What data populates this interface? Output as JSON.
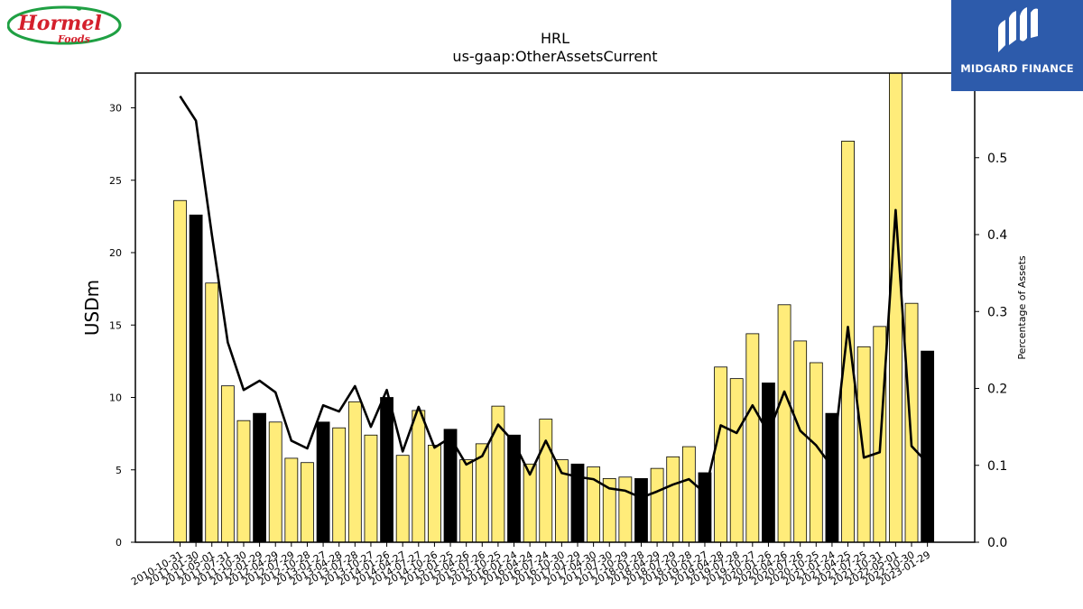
{
  "logos": {
    "left_brand": "Hormel",
    "left_sub": "Foods",
    "right_brand": "MIDGARD FINANCE"
  },
  "colors": {
    "bar_default": "#ffec7a",
    "bar_highlight": "#000000",
    "line": "#000000",
    "hormel_red": "#d4202c",
    "hormel_green": "#1fa043",
    "midgard_blue": "#2d5bab"
  },
  "chart_data": {
    "type": "bar",
    "title": "HRL",
    "subtitle": "us-gaap:OtherAssetsCurrent",
    "ylabel": "USDm",
    "y2label": "Percentage of Assets",
    "ylim": [
      0,
      32.4
    ],
    "y2lim": [
      0,
      0.61
    ],
    "yticks": [
      0,
      5,
      10,
      15,
      20,
      25,
      30
    ],
    "y2ticks": [
      0.0,
      0.1,
      0.2,
      0.3,
      0.4,
      0.5
    ],
    "categories": [
      "2010-10-31",
      "2011-01-30",
      "2011-05-01",
      "2011-07-31",
      "2011-10-30",
      "2012-01-29",
      "2012-04-29",
      "2012-07-29",
      "2012-10-28",
      "2013-01-27",
      "2013-04-28",
      "2013-07-28",
      "2013-10-27",
      "2014-01-26",
      "2014-04-27",
      "2014-07-27",
      "2014-10-26",
      "2015-01-25",
      "2015-04-26",
      "2015-07-26",
      "2015-10-25",
      "2016-01-24",
      "2016-04-24",
      "2016-07-24",
      "2016-10-30",
      "2017-01-29",
      "2017-04-30",
      "2017-07-30",
      "2017-10-29",
      "2018-01-28",
      "2018-04-29",
      "2018-07-29",
      "2018-10-28",
      "2019-01-27",
      "2019-04-28",
      "2019-07-28",
      "2019-10-27",
      "2020-01-26",
      "2020-04-26",
      "2020-07-26",
      "2020-10-25",
      "2021-01-24",
      "2021-04-25",
      "2021-07-25",
      "2021-10-31",
      "2022-05-01",
      "2022-10-30",
      "2023-01-29"
    ],
    "xtick_labels": [
      "2010-10-31",
      "2011-01-30",
      "2011-05-01",
      "2011-07-31",
      "2011-10-30",
      "2012-01-29",
      "2012-04-29",
      "2012-07-29",
      "2012-10-28",
      "2013-01-27",
      "2013-04-28",
      "2013-07-28",
      "2013-10-27",
      "2014-01-26",
      "2014-04-27",
      "2014-07-27",
      "2014-10-26",
      "2015-01-25",
      "2015-04-26",
      "2015-07-26",
      "2015-10-25",
      "2016-01-24",
      "2016-04-24",
      "2016-07-24",
      "2016-10-30",
      "2017-01-29",
      "2017-04-30",
      "2017-07-30",
      "2017-10-29",
      "2018-01-28",
      "2018-04-29",
      "2018-07-29",
      "2018-10-28",
      "2019-01-27",
      "2019-04-28",
      "2019-07-28",
      "2019-10-27",
      "2020-01-26",
      "2020-04-26",
      "2020-07-26",
      "2020-10-25",
      "2021-01-24",
      "2021-04-25",
      "2021-07-25",
      "2021-10-31",
      "2022-05-01",
      "2022-10-30",
      "2023-01-29"
    ],
    "series": [
      {
        "kind": "bar",
        "values": [
          23.6,
          22.6,
          17.9,
          10.8,
          8.4,
          8.9,
          8.3,
          5.8,
          5.5,
          8.3,
          7.9,
          9.7,
          7.4,
          10.0,
          6.0,
          9.1,
          6.7,
          7.8,
          5.7,
          6.8,
          9.4,
          7.4,
          5.4,
          8.5,
          5.7,
          5.4,
          5.2,
          4.4,
          4.5,
          4.4,
          5.1,
          5.9,
          6.6,
          4.8,
          12.1,
          11.3,
          14.4,
          11.0,
          16.4,
          13.9,
          12.4,
          8.9,
          27.7,
          13.5,
          14.9,
          32.4,
          16.5,
          13.2
        ],
        "highlight": [
          false,
          true,
          false,
          false,
          false,
          true,
          false,
          false,
          false,
          true,
          false,
          false,
          false,
          true,
          false,
          false,
          false,
          true,
          false,
          false,
          false,
          true,
          false,
          false,
          false,
          true,
          false,
          false,
          false,
          true,
          false,
          false,
          false,
          true,
          false,
          false,
          false,
          true,
          false,
          false,
          false,
          true,
          false,
          false,
          false,
          false,
          false,
          true
        ]
      },
      {
        "kind": "line",
        "axis": "right",
        "values": [
          0.58,
          0.548,
          0.4,
          0.26,
          0.198,
          0.21,
          0.195,
          0.132,
          0.122,
          0.178,
          0.17,
          0.203,
          0.15,
          0.198,
          0.118,
          0.176,
          0.123,
          0.136,
          0.101,
          0.112,
          0.153,
          0.13,
          0.088,
          0.132,
          0.09,
          0.085,
          0.082,
          0.07,
          0.067,
          0.058,
          0.066,
          0.075,
          0.082,
          0.064,
          0.152,
          0.142,
          0.178,
          0.142,
          0.196,
          0.145,
          0.126,
          0.098,
          0.28,
          0.11,
          0.117,
          0.432,
          0.125,
          0.103
        ]
      }
    ]
  }
}
